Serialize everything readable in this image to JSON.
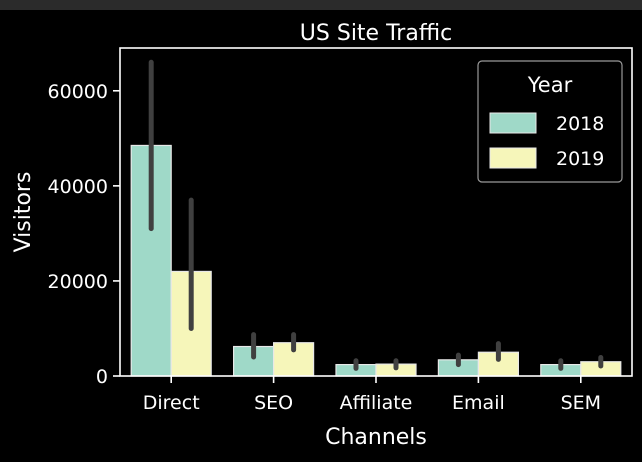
{
  "chart_data": {
    "type": "bar",
    "title": "US Site Traffic",
    "xlabel": "Channels",
    "ylabel": "Visitors",
    "categories": [
      "Direct",
      "SEO",
      "Affiliate",
      "Email",
      "SEM"
    ],
    "ylim": [
      0,
      69000
    ],
    "yticks": [
      0,
      20000,
      40000,
      60000
    ],
    "legend": {
      "title": "Year",
      "placement": "top-right"
    },
    "grid": false,
    "series": [
      {
        "name": "2018",
        "color": "#9fd9c8",
        "values": [
          48500,
          6200,
          2400,
          3400,
          2400
        ],
        "error_low": [
          31000,
          4000,
          1600,
          2400,
          1600
        ],
        "error_high": [
          66000,
          8700,
          3200,
          4400,
          3200
        ]
      },
      {
        "name": "2019",
        "color": "#f6f6ba",
        "values": [
          22000,
          7000,
          2500,
          5000,
          3000
        ],
        "error_low": [
          10000,
          5500,
          1700,
          3500,
          2100
        ],
        "error_high": [
          37000,
          8700,
          3200,
          6800,
          3900
        ]
      }
    ],
    "error_bar_color": "#404040"
  }
}
